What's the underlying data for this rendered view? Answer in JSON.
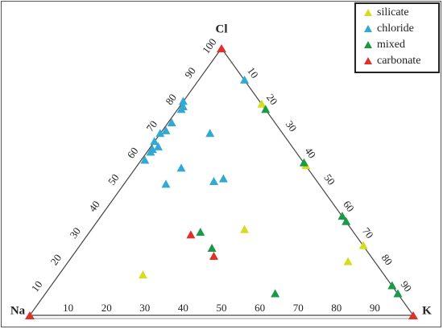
{
  "chart_data": {
    "type": "ternary",
    "vertex_labels": {
      "left": "Na",
      "right": "K",
      "top": "Cl"
    },
    "bottom_ticks": [
      10,
      20,
      30,
      40,
      50,
      60,
      70,
      80,
      90
    ],
    "left_ticks": [
      10,
      20,
      30,
      40,
      50,
      60,
      70,
      80,
      90,
      100
    ],
    "right_ticks": [
      10,
      20,
      30,
      40,
      50,
      60,
      70,
      80,
      90
    ],
    "legend": "top-right",
    "series": [
      {
        "name": "silicate",
        "color": "#d4dc1e",
        "cl": [
          79,
          56,
          32,
          26,
          20,
          15
        ],
        "k": [
          21,
          44,
          40,
          74,
          73,
          22
        ]
      },
      {
        "name": "chloride",
        "color": "#32a9d2",
        "cl": [
          88,
          80,
          78,
          77,
          72,
          69,
          68,
          65,
          63,
          62,
          61,
          58,
          55,
          68,
          49,
          50,
          51
        ],
        "k": [
          12,
          0,
          1,
          1,
          1,
          1,
          0,
          0,
          2,
          1,
          1,
          1,
          12,
          13,
          11,
          23,
          25
        ]
      },
      {
        "name": "mixed",
        "color": "#1a9a48",
        "cl": [
          77,
          57,
          37,
          35,
          31,
          25,
          11,
          8,
          8
        ],
        "k": [
          23,
          43,
          63,
          65,
          29,
          35,
          89,
          92,
          60
        ]
      },
      {
        "name": "carbonate",
        "color": "#e0302a",
        "cl": [
          30,
          22
        ],
        "k": [
          27,
          37
        ]
      }
    ]
  }
}
